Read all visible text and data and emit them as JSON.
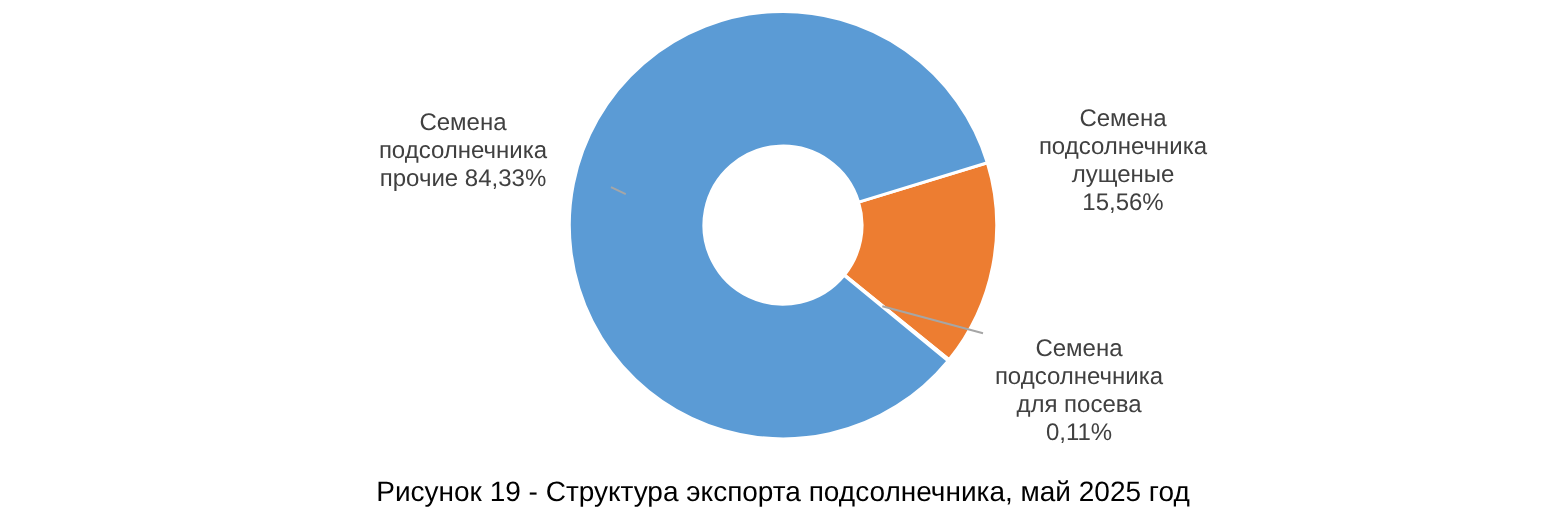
{
  "chart_data": {
    "type": "donut",
    "title": "Рисунок 19 - Структура экспорта подсолнечника, май 2025 год",
    "categories": [
      "Семена подсолнечника лущеные",
      "Семена подсолнечника для посева",
      "Семена подсолнечника прочие"
    ],
    "values": [
      15.56,
      0.11,
      84.33
    ],
    "colors": [
      "#ed7d31",
      "#a5a5a5",
      "#5b9bd5"
    ],
    "value_labels": [
      "15,56%",
      "0,11%",
      "84,33%"
    ],
    "legend": false
  }
}
